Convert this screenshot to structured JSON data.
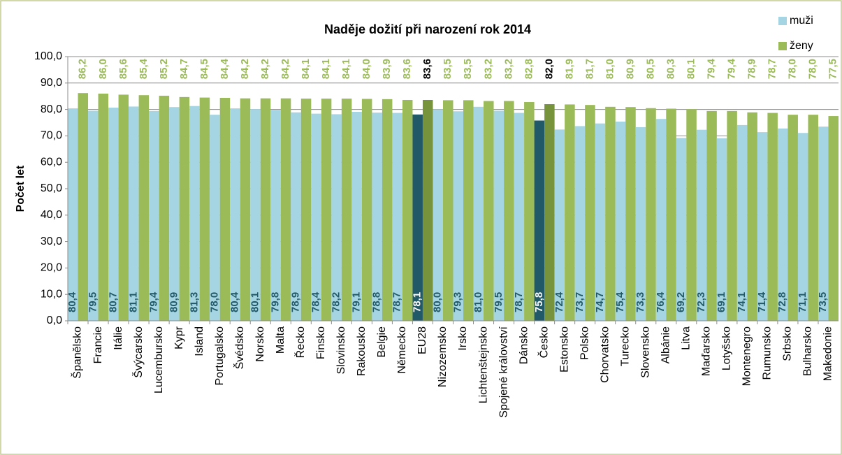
{
  "chart_data": {
    "type": "bar",
    "title": "Naděje dožití při narození rok 2014",
    "y_label": "Počet let",
    "categories": [
      "Španělsko",
      "Francie",
      "Itálie",
      "Švýcarsko",
      "Lucembursko",
      "Kypr",
      "Island",
      "Portugalsko",
      "Švédsko",
      "Norsko",
      "Malta",
      "Řecko",
      "Finsko",
      "Slovinsko",
      "Rakousko",
      "Belgie",
      "Německo",
      "EU28",
      "Nizozemsko",
      "Irsko",
      "Lichtenštejnsko",
      "Spojené království",
      "Dánsko",
      "Česko",
      "Estonsko",
      "Polsko",
      "Chorvatsko",
      "Turecko",
      "Slovensko",
      "Albánie",
      "Litva",
      "Maďarsko",
      "Lotyšsko",
      "Montenegro",
      "Rumunsko",
      "Srbsko",
      "Bulharsko",
      "Makedonie"
    ],
    "series": [
      {
        "name": "muži",
        "color": "#a5d5e2",
        "label_color": "#215968",
        "highlight_label_color": "#ffffff",
        "values": [
          80.4,
          79.5,
          80.7,
          81.1,
          79.4,
          80.9,
          81.3,
          78.0,
          80.4,
          80.1,
          79.8,
          78.9,
          78.4,
          78.2,
          79.1,
          78.8,
          78.7,
          78.1,
          80.0,
          79.3,
          81.0,
          79.5,
          78.7,
          75.8,
          72.4,
          73.7,
          74.7,
          75.4,
          73.3,
          76.4,
          69.2,
          72.3,
          69.1,
          74.1,
          71.4,
          72.8,
          71.1,
          73.5
        ],
        "value_labels": [
          "80,4",
          "79,5",
          "80,7",
          "81,1",
          "79,4",
          "80,9",
          "81,3",
          "78,0",
          "80,4",
          "80,1",
          "79,8",
          "78,9",
          "78,4",
          "78,2",
          "79,1",
          "78,8",
          "78,7",
          "78,1",
          "80,0",
          "79,3",
          "81,0",
          "79,5",
          "78,7",
          "75,8",
          "72,4",
          "73,7",
          "74,7",
          "75,4",
          "73,3",
          "76,4",
          "69,2",
          "72,3",
          "69,1",
          "74,1",
          "71,4",
          "72,8",
          "71,1",
          "73,5"
        ],
        "colors": [
          "#a5d5e2",
          "#a5d5e2",
          "#a5d5e2",
          "#a5d5e2",
          "#a5d5e2",
          "#a5d5e2",
          "#a5d5e2",
          "#a5d5e2",
          "#a5d5e2",
          "#a5d5e2",
          "#a5d5e2",
          "#a5d5e2",
          "#a5d5e2",
          "#a5d5e2",
          "#a5d5e2",
          "#a5d5e2",
          "#a5d5e2",
          "#215968",
          "#a5d5e2",
          "#a5d5e2",
          "#a5d5e2",
          "#a5d5e2",
          "#a5d5e2",
          "#215968",
          "#a5d5e2",
          "#a5d5e2",
          "#a5d5e2",
          "#a5d5e2",
          "#a5d5e2",
          "#a5d5e2",
          "#a5d5e2",
          "#a5d5e2",
          "#a5d5e2",
          "#a5d5e2",
          "#a5d5e2",
          "#a5d5e2",
          "#a5d5e2",
          "#a5d5e2"
        ]
      },
      {
        "name": "ženy",
        "color": "#9bbb59",
        "label_color": "#9bbb59",
        "highlight_label_color": "#000000",
        "values": [
          86.2,
          86.0,
          85.6,
          85.4,
          85.2,
          84.7,
          84.5,
          84.4,
          84.2,
          84.2,
          84.2,
          84.1,
          84.1,
          84.1,
          84.0,
          83.9,
          83.6,
          83.6,
          83.5,
          83.5,
          83.2,
          83.2,
          82.8,
          82.0,
          81.9,
          81.7,
          81.0,
          80.9,
          80.5,
          80.3,
          80.1,
          79.4,
          79.4,
          78.9,
          78.7,
          78.0,
          78.0,
          77.5
        ],
        "value_labels": [
          "86,2",
          "86,0",
          "85,6",
          "85,4",
          "85,2",
          "84,7",
          "84,5",
          "84,4",
          "84,2",
          "84,2",
          "84,2",
          "84,1",
          "84,1",
          "84,1",
          "84,0",
          "83,9",
          "83,6",
          "83,6",
          "83,5",
          "83,5",
          "83,2",
          "83,2",
          "82,8",
          "82,0",
          "81,9",
          "81,7",
          "81,0",
          "80,9",
          "80,5",
          "80,3",
          "80,1",
          "79,4",
          "79,4",
          "78,9",
          "78,7",
          "78,0",
          "78,0",
          "77,5"
        ],
        "colors": [
          "#9bbb59",
          "#9bbb59",
          "#9bbb59",
          "#9bbb59",
          "#9bbb59",
          "#9bbb59",
          "#9bbb59",
          "#9bbb59",
          "#9bbb59",
          "#9bbb59",
          "#9bbb59",
          "#9bbb59",
          "#9bbb59",
          "#9bbb59",
          "#9bbb59",
          "#9bbb59",
          "#9bbb59",
          "#77933c",
          "#9bbb59",
          "#9bbb59",
          "#9bbb59",
          "#9bbb59",
          "#9bbb59",
          "#77933c",
          "#9bbb59",
          "#9bbb59",
          "#9bbb59",
          "#9bbb59",
          "#9bbb59",
          "#9bbb59",
          "#9bbb59",
          "#9bbb59",
          "#9bbb59",
          "#9bbb59",
          "#9bbb59",
          "#9bbb59",
          "#9bbb59",
          "#9bbb59"
        ]
      }
    ],
    "ylim": [
      0,
      100
    ],
    "yticks": [
      {
        "value": 0,
        "label": "0,0"
      },
      {
        "value": 10,
        "label": "10,0"
      },
      {
        "value": 20,
        "label": "20,0"
      },
      {
        "value": 30,
        "label": "30,0"
      },
      {
        "value": 40,
        "label": "40,0"
      },
      {
        "value": 50,
        "label": "50,0"
      },
      {
        "value": 60,
        "label": "60,0"
      },
      {
        "value": 70,
        "label": "70,0"
      },
      {
        "value": 80,
        "label": "80,0"
      },
      {
        "value": 90,
        "label": "90,0"
      },
      {
        "value": 100,
        "label": "100,0"
      }
    ],
    "grid": true,
    "legend": "top-right"
  }
}
